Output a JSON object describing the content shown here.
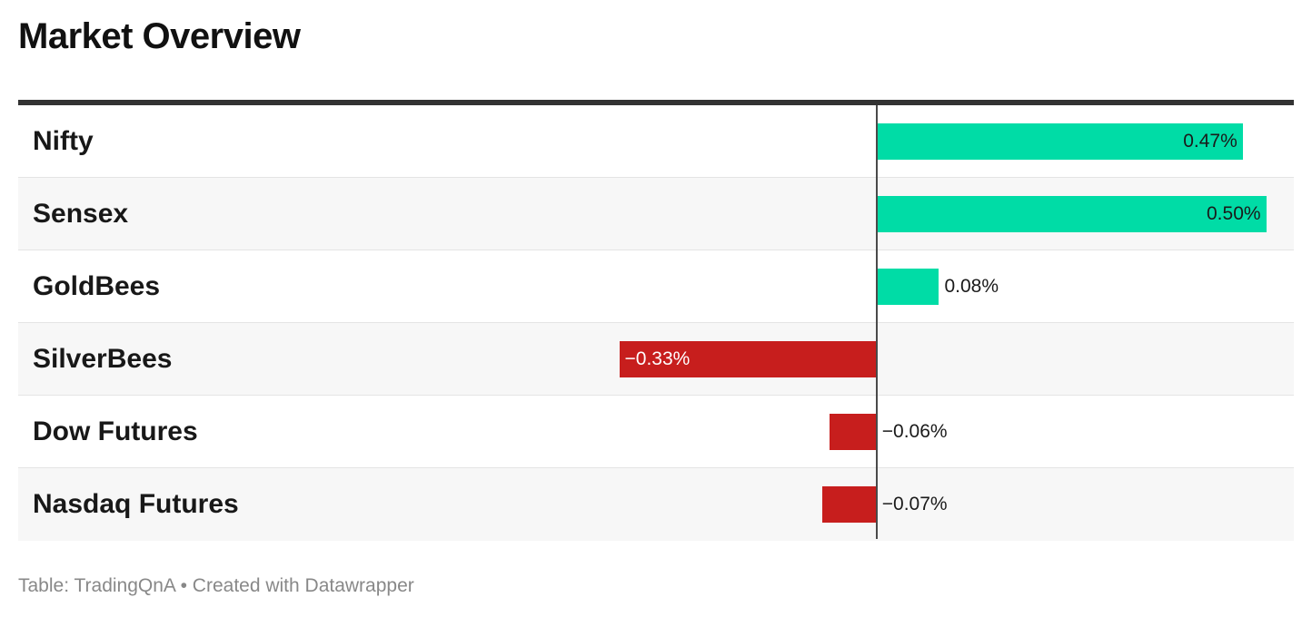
{
  "title": "Market Overview",
  "footer": "Table: TradingQnA • Created with Datawrapper",
  "colors": {
    "positive": "#00dca6",
    "negative": "#c71e1d",
    "zero_line": "#4a4a4a",
    "top_rule": "#333333",
    "footer_text": "#888888"
  },
  "chart_data": {
    "type": "bar",
    "orientation": "horizontal",
    "categories": [
      "Nifty",
      "Sensex",
      "GoldBees",
      "SilverBees",
      "Dow Futures",
      "Nasdaq Futures"
    ],
    "values": [
      0.47,
      0.5,
      0.08,
      -0.33,
      -0.06,
      -0.07
    ],
    "value_labels": [
      "0.47%",
      "0.50%",
      "0.08%",
      "−0.33%",
      "−0.06%",
      "−0.07%"
    ],
    "unit": "%",
    "xlim": [
      -0.6533,
      0.5
    ]
  }
}
